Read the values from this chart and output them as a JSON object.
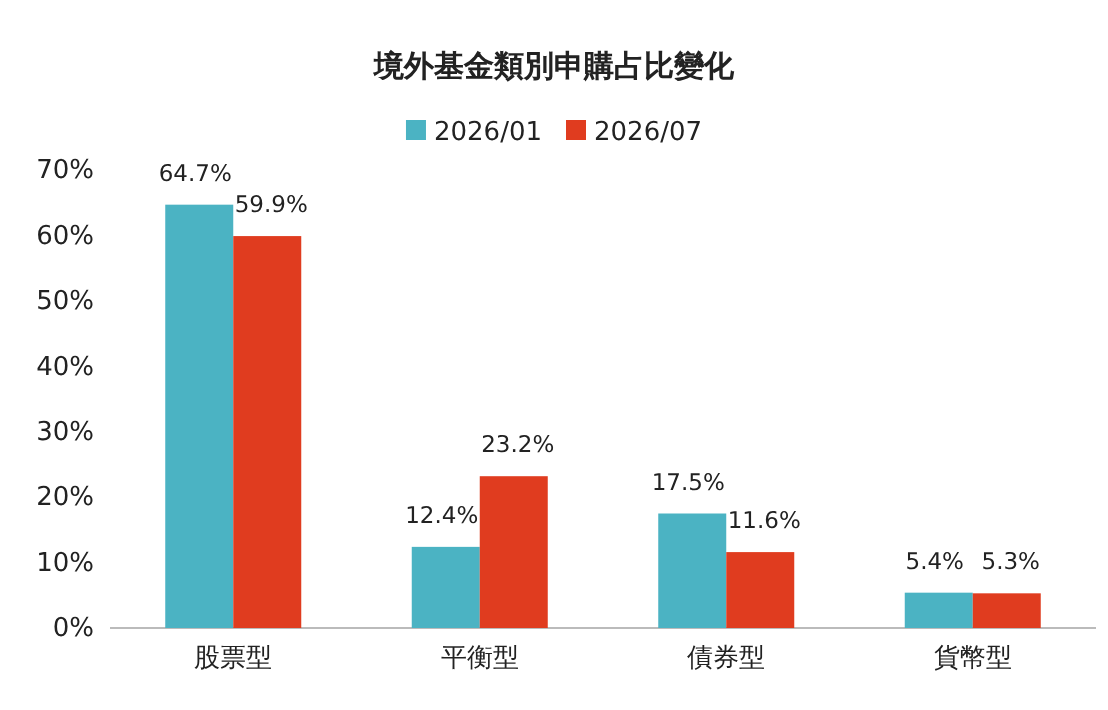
{
  "chart_data": {
    "type": "bar",
    "title": "境外基金類別申購占比變化",
    "categories": [
      "股票型",
      "平衡型",
      "債券型",
      "貨幣型"
    ],
    "series": [
      {
        "name": "2026/01",
        "color": "#4bb3c3",
        "values": [
          64.7,
          12.4,
          17.5,
          5.4
        ],
        "value_labels": [
          "64.7%",
          "12.4%",
          "17.5%",
          "5.4%"
        ]
      },
      {
        "name": "2026/07",
        "color": "#e03c1f",
        "values": [
          59.9,
          23.2,
          11.6,
          5.3
        ],
        "value_labels": [
          "59.9%",
          "23.2%",
          "11.6%",
          "5.3%"
        ]
      }
    ],
    "ylim": [
      0,
      70
    ],
    "yticks": [
      {
        "value": 0,
        "label": "0%"
      },
      {
        "value": 10,
        "label": "10%"
      },
      {
        "value": 20,
        "label": "20%"
      },
      {
        "value": 30,
        "label": "30%"
      },
      {
        "value": 40,
        "label": "40%"
      },
      {
        "value": 50,
        "label": "50%"
      },
      {
        "value": 60,
        "label": "60%"
      },
      {
        "value": 70,
        "label": "70%"
      }
    ],
    "grid": false,
    "legend": "top"
  }
}
